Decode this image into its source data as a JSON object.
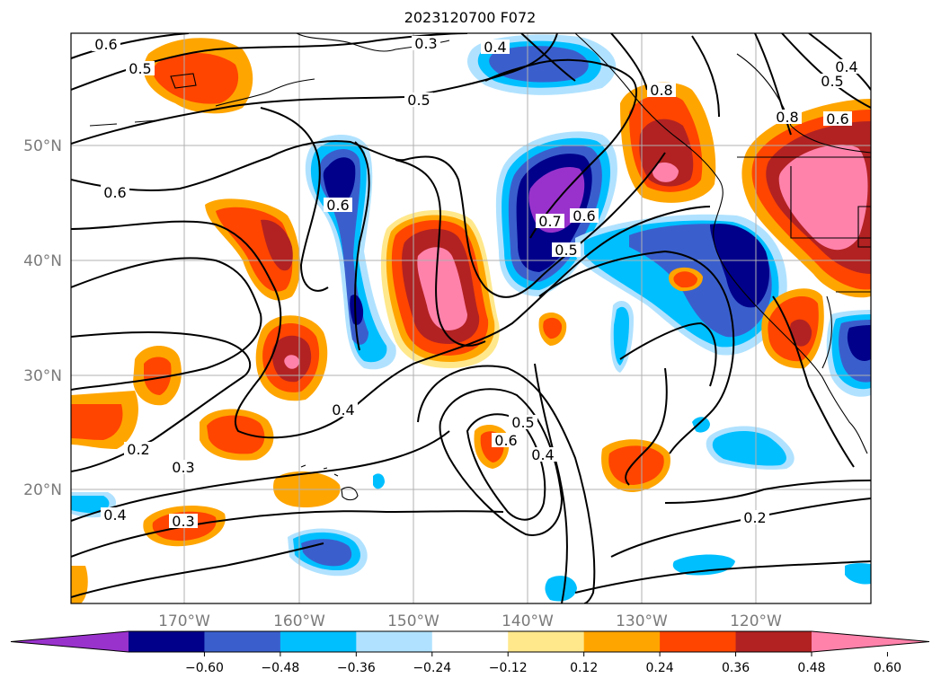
{
  "title": "2023120700 F072",
  "lat_labels": [
    "50°N",
    "40°N",
    "30°N",
    "20°N"
  ],
  "lon_labels": [
    "170°W",
    "160°W",
    "150°W",
    "140°W",
    "130°W",
    "120°W"
  ],
  "colorbar": {
    "ticks": [
      "−0.60",
      "−0.48",
      "−0.36",
      "−0.24",
      "−0.12",
      "0.12",
      "0.24",
      "0.36",
      "0.48",
      "0.60"
    ],
    "colors": [
      "#9932cc",
      "#00008b",
      "#3a5fcd",
      "#00bfff",
      "#b0e2ff",
      "#ffffff",
      "#ffe88c",
      "#ffa500",
      "#ff4500",
      "#b22222",
      "#ff82ab"
    ]
  },
  "contour_labels": [
    "0.6",
    "0.5",
    "0.3",
    "0.4",
    "0.5",
    "0.8",
    "0.8",
    "0.4",
    "0.5",
    "0.6",
    "0.6",
    "0.6",
    "0.7",
    "0.6",
    "0.5",
    "0.4",
    "0.5",
    "0.6",
    "0.4",
    "0.2",
    "0.3",
    "0.4",
    "0.3",
    "0.2"
  ]
}
